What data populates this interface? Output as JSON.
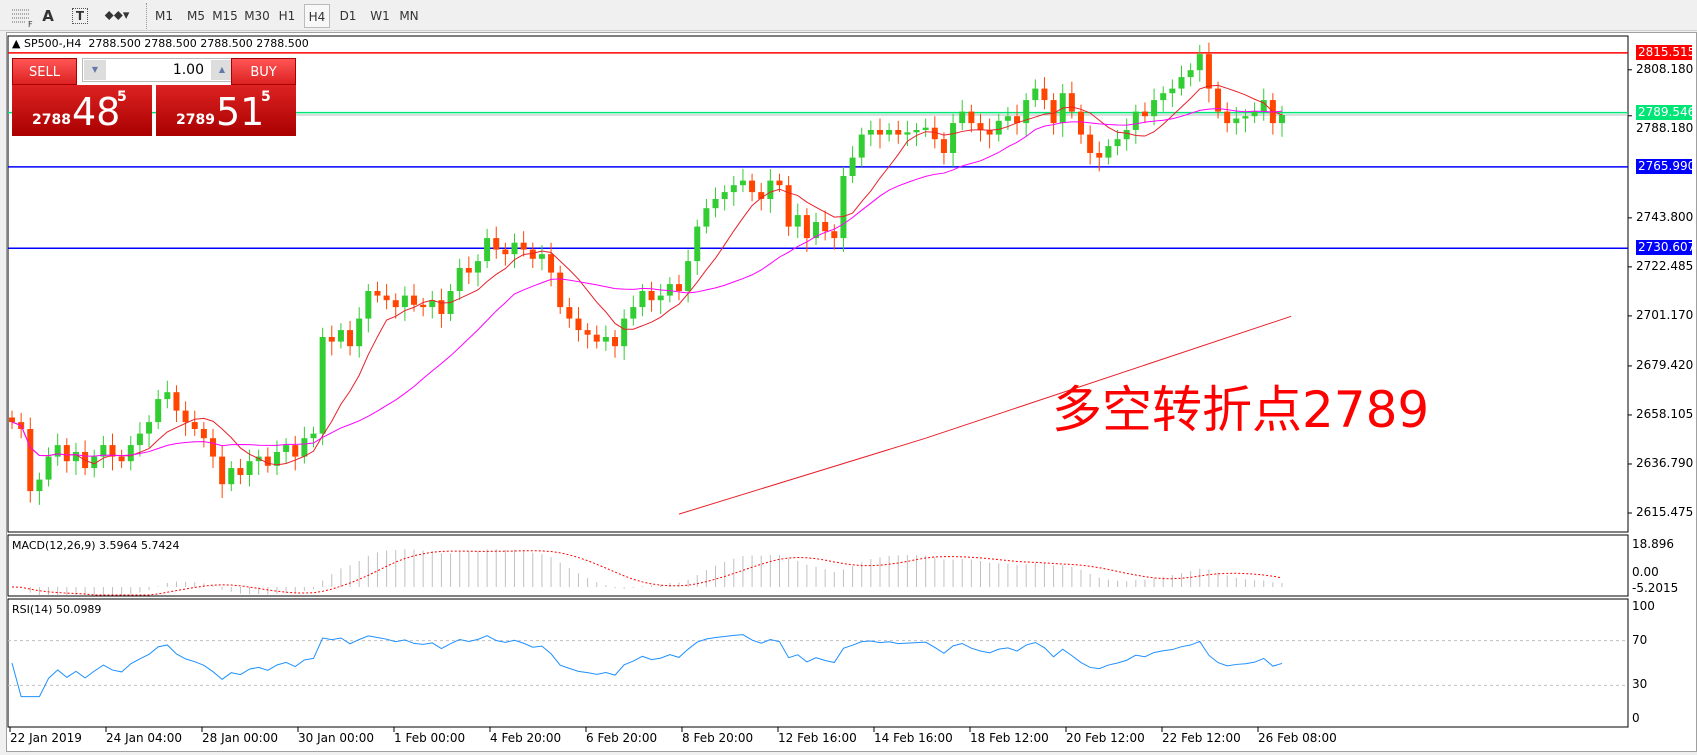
{
  "toolbar": {
    "tools": [
      "grid-icon",
      "text-A-icon",
      "text-label-T-icon",
      "arrows-dropdown-icon"
    ],
    "text_A": "A",
    "timeframes": [
      "M1",
      "M5",
      "M15",
      "M30",
      "H1",
      "H4",
      "D1",
      "W1",
      "MN"
    ],
    "active_timeframe": "H4"
  },
  "header": {
    "symbol": "SP500-,H4",
    "ohlc": "2788.500 2788.500 2788.500 2788.500"
  },
  "trade": {
    "sell_label": "SELL",
    "buy_label": "BUY",
    "lot": "1.00",
    "sell_small": "2788",
    "sell_big": "48",
    "sell_sup": "5",
    "buy_small": "2789",
    "buy_big": "51",
    "buy_sup": "5"
  },
  "annotation": "多空转折点2789",
  "colors": {
    "bull": "#32cd32",
    "bear": "#ff4500",
    "sma_fast": "#e8202a",
    "sma_mid": "#ff00ff",
    "sma_long": "#e8202a",
    "res": "#ff0000",
    "pivot": "#00e676",
    "support": "#0000ff"
  },
  "chart_data": {
    "type": "candlestick",
    "symbol": "SP500-",
    "timeframe": "H4",
    "price_ticks": [
      "2808.180",
      "2788.180",
      "2743.800",
      "2722.485",
      "2701.170",
      "2679.420",
      "2658.105",
      "2636.790",
      "2615.475"
    ],
    "price_tick_values": [
      2808.18,
      2788.18,
      2743.8,
      2722.485,
      2701.17,
      2679.42,
      2658.105,
      2636.79,
      2615.475
    ],
    "levels": [
      {
        "price": "2815.515",
        "value": 2815.515,
        "color": "#ff0000"
      },
      {
        "price": "2789.546",
        "value": 2789.546,
        "color": "#00e676"
      },
      {
        "price": "2765.990",
        "value": 2765.99,
        "color": "#0000ff"
      },
      {
        "price": "2730.607",
        "value": 2730.607,
        "color": "#0000ff"
      }
    ],
    "bid": 2788.5,
    "time_labels": [
      "22 Jan 2019",
      "24 Jan 04:00",
      "28 Jan 00:00",
      "30 Jan 00:00",
      "1 Feb 00:00",
      "4 Feb 20:00",
      "6 Feb 20:00",
      "8 Feb 20:00",
      "12 Feb 16:00",
      "14 Feb 16:00",
      "18 Feb 12:00",
      "20 Feb 12:00",
      "22 Feb 12:00",
      "26 Feb 08:00"
    ],
    "closes": [
      2655,
      2652,
      2625,
      2630,
      2640,
      2645,
      2638,
      2642,
      2635,
      2640,
      2645,
      2640,
      2638,
      2645,
      2650,
      2655,
      2665,
      2668,
      2660,
      2655,
      2652,
      2648,
      2640,
      2628,
      2635,
      2632,
      2638,
      2640,
      2636,
      2642,
      2645,
      2640,
      2648,
      2650,
      2692,
      2690,
      2695,
      2688,
      2700,
      2712,
      2710,
      2708,
      2705,
      2710,
      2706,
      2705,
      2708,
      2702,
      2712,
      2722,
      2720,
      2725,
      2735,
      2730,
      2728,
      2733,
      2730,
      2726,
      2728,
      2720,
      2705,
      2700,
      2695,
      2693,
      2690,
      2692,
      2688,
      2700,
      2705,
      2712,
      2708,
      2710,
      2715,
      2712,
      2725,
      2740,
      2748,
      2752,
      2755,
      2758,
      2760,
      2755,
      2752,
      2760,
      2758,
      2740,
      2745,
      2735,
      2742,
      2738,
      2735,
      2762,
      2770,
      2780,
      2782,
      2780,
      2782,
      2780,
      2781,
      2782,
      2783,
      2778,
      2772,
      2785,
      2790,
      2785,
      2782,
      2780,
      2786,
      2788,
      2785,
      2795,
      2800,
      2795,
      2785,
      2798,
      2790,
      2780,
      2772,
      2770,
      2775,
      2778,
      2782,
      2790,
      2788,
      2795,
      2798,
      2800,
      2805,
      2808,
      2815,
      2800,
      2790,
      2785,
      2787,
      2788,
      2790,
      2795,
      2785,
      2788.5
    ],
    "sma_long_points": [
      [
        73,
        2615
      ],
      [
        100,
        2648
      ],
      [
        140,
        2701
      ]
    ],
    "macd": {
      "label": "MACD(12,26,9) 3.5964 5.7424",
      "ticks": [
        "18.896",
        "0.00",
        "-5.2015"
      ],
      "max": 18.896,
      "min": -5.2015
    },
    "rsi": {
      "label": "RSI(14) 50.0989",
      "ticks": [
        "100",
        "70",
        "30",
        "0"
      ],
      "levels": [
        70,
        30
      ]
    }
  }
}
